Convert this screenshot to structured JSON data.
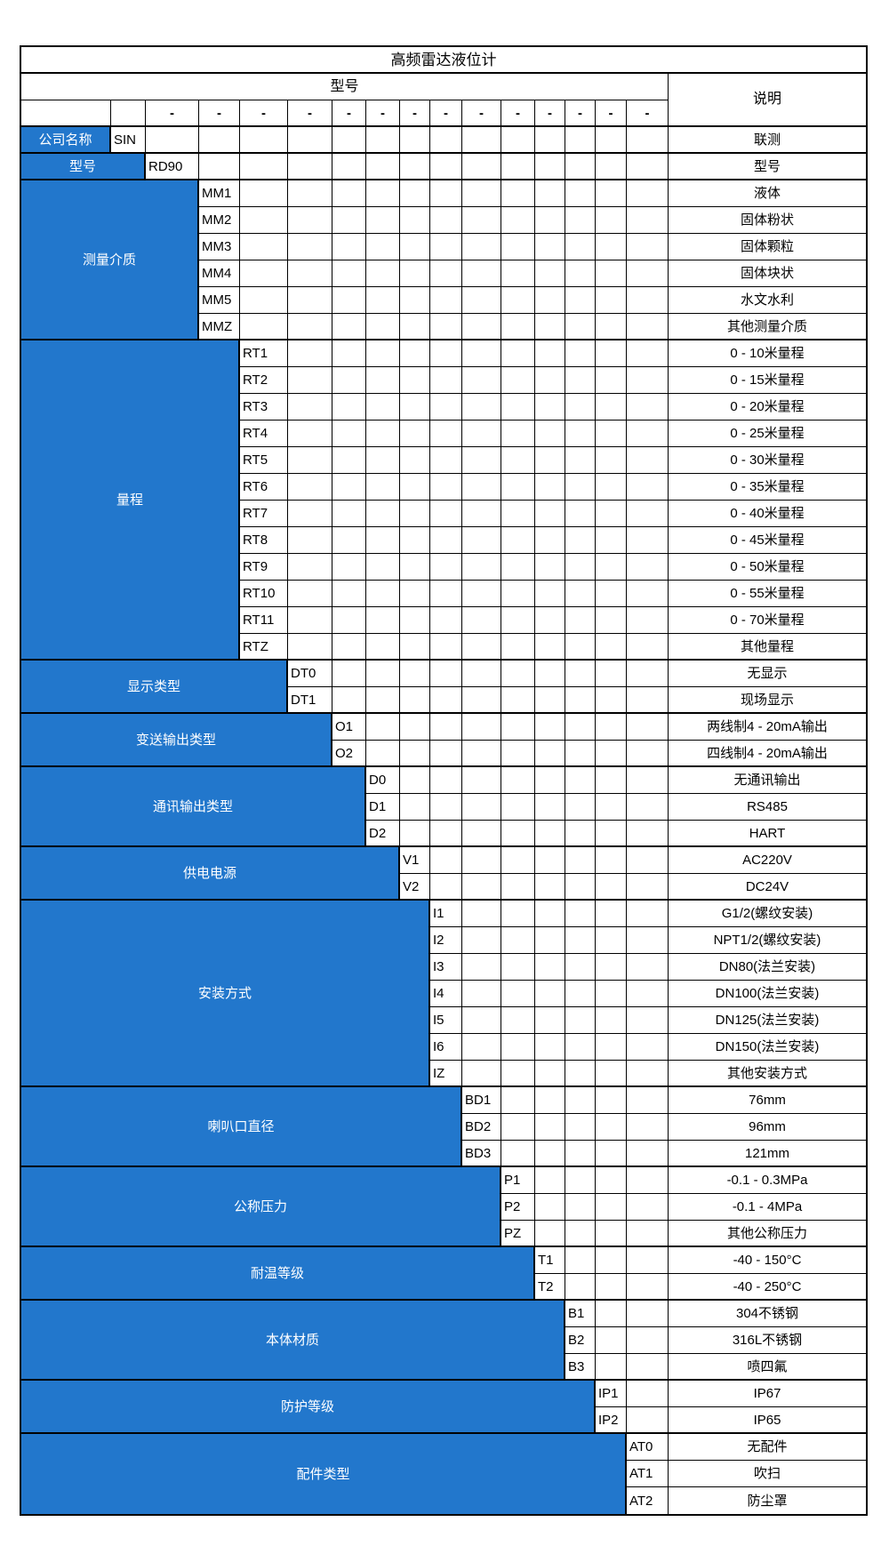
{
  "title": "高频雷达液位计",
  "header": {
    "model_label": "型号",
    "desc_label": "说明",
    "dash": "-"
  },
  "colors": {
    "accent_blue": "#2277cc",
    "border": "#000000",
    "text_on_blue": "#ffffff"
  },
  "sections": [
    {
      "label": "公司名称",
      "code_col": 1,
      "options": [
        {
          "code": "SIN",
          "desc": "联测"
        }
      ]
    },
    {
      "label": "型号",
      "code_col": 2,
      "options": [
        {
          "code": "RD90",
          "desc": "型号"
        }
      ]
    },
    {
      "label": "测量介质",
      "code_col": 3,
      "options": [
        {
          "code": "MM1",
          "desc": "液体"
        },
        {
          "code": "MM2",
          "desc": "固体粉状"
        },
        {
          "code": "MM3",
          "desc": "固体颗粒"
        },
        {
          "code": "MM4",
          "desc": "固体块状"
        },
        {
          "code": "MM5",
          "desc": "水文水利"
        },
        {
          "code": "MMZ",
          "desc": "其他测量介质"
        }
      ]
    },
    {
      "label": "量程",
      "code_col": 4,
      "options": [
        {
          "code": "RT1",
          "desc": "0 - 10米量程"
        },
        {
          "code": "RT2",
          "desc": "0 - 15米量程"
        },
        {
          "code": "RT3",
          "desc": "0 - 20米量程"
        },
        {
          "code": "RT4",
          "desc": "0 - 25米量程"
        },
        {
          "code": "RT5",
          "desc": "0 - 30米量程"
        },
        {
          "code": "RT6",
          "desc": "0 - 35米量程"
        },
        {
          "code": "RT7",
          "desc": "0 - 40米量程"
        },
        {
          "code": "RT8",
          "desc": "0 - 45米量程"
        },
        {
          "code": "RT9",
          "desc": "0 - 50米量程"
        },
        {
          "code": "RT10",
          "desc": "0 - 55米量程"
        },
        {
          "code": "RT11",
          "desc": "0 - 70米量程"
        },
        {
          "code": "RTZ",
          "desc": "其他量程"
        }
      ]
    },
    {
      "label": "显示类型",
      "code_col": 5,
      "options": [
        {
          "code": "DT0",
          "desc": "无显示"
        },
        {
          "code": "DT1",
          "desc": "现场显示"
        }
      ]
    },
    {
      "label": "变送输出类型",
      "code_col": 6,
      "options": [
        {
          "code": "O1",
          "desc": "两线制4 - 20mA输出"
        },
        {
          "code": "O2",
          "desc": "四线制4 - 20mA输出"
        }
      ]
    },
    {
      "label": "通讯输出类型",
      "code_col": 7,
      "options": [
        {
          "code": "D0",
          "desc": "无通讯输出"
        },
        {
          "code": "D1",
          "desc": "RS485"
        },
        {
          "code": "D2",
          "desc": "HART"
        }
      ]
    },
    {
      "label": "供电电源",
      "code_col": 8,
      "options": [
        {
          "code": "V1",
          "desc": "AC220V"
        },
        {
          "code": "V2",
          "desc": "DC24V"
        }
      ]
    },
    {
      "label": "安装方式",
      "code_col": 9,
      "options": [
        {
          "code": "I1",
          "desc": "G1/2(螺纹安装)"
        },
        {
          "code": "I2",
          "desc": "NPT1/2(螺纹安装)"
        },
        {
          "code": "I3",
          "desc": "DN80(法兰安装)"
        },
        {
          "code": "I4",
          "desc": "DN100(法兰安装)"
        },
        {
          "code": "I5",
          "desc": "DN125(法兰安装)"
        },
        {
          "code": "I6",
          "desc": "DN150(法兰安装)"
        },
        {
          "code": "IZ",
          "desc": "其他安装方式"
        }
      ]
    },
    {
      "label": "喇叭口直径",
      "code_col": 10,
      "options": [
        {
          "code": "BD1",
          "desc": "76mm"
        },
        {
          "code": "BD2",
          "desc": "96mm"
        },
        {
          "code": "BD3",
          "desc": "121mm"
        }
      ]
    },
    {
      "label": "公称压力",
      "code_col": 11,
      "options": [
        {
          "code": "P1",
          "desc": "-0.1 - 0.3MPa"
        },
        {
          "code": "P2",
          "desc": "-0.1 - 4MPa"
        },
        {
          "code": "PZ",
          "desc": "其他公称压力"
        }
      ]
    },
    {
      "label": "耐温等级",
      "code_col": 12,
      "options": [
        {
          "code": "T1",
          "desc": "-40 - 150°C"
        },
        {
          "code": "T2",
          "desc": "-40 - 250°C"
        }
      ]
    },
    {
      "label": "本体材质",
      "code_col": 13,
      "options": [
        {
          "code": "B1",
          "desc": "304不锈钢"
        },
        {
          "code": "B2",
          "desc": "316L不锈钢"
        },
        {
          "code": "B3",
          "desc": "喷四氟"
        }
      ]
    },
    {
      "label": "防护等级",
      "code_col": 14,
      "options": [
        {
          "code": "IP1",
          "desc": "IP67"
        },
        {
          "code": "IP2",
          "desc": "IP65"
        }
      ]
    },
    {
      "label": "配件类型",
      "code_col": 15,
      "options": [
        {
          "code": "AT0",
          "desc": "无配件"
        },
        {
          "code": "AT1",
          "desc": "吹扫"
        },
        {
          "code": "AT2",
          "desc": "防尘罩"
        }
      ]
    }
  ]
}
